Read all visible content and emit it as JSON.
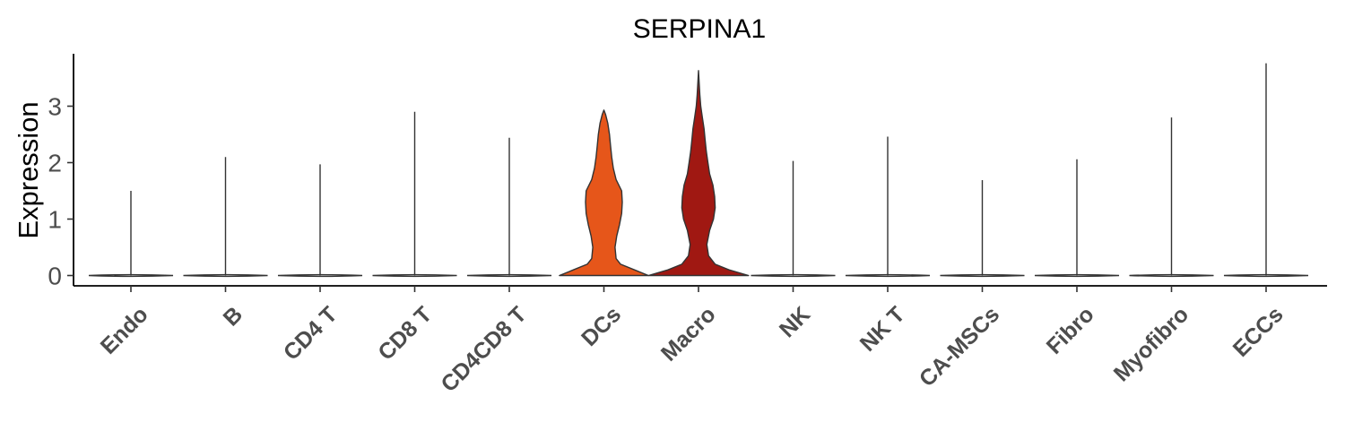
{
  "chart_data": {
    "type": "violin",
    "title": "SERPINA1",
    "ylabel": "Expression",
    "xlabel": "",
    "ylim": [
      -0.2,
      3.9
    ],
    "yticks": [
      0,
      1,
      2,
      3
    ],
    "grid": false,
    "legend": "none",
    "categories": [
      "Endo",
      "B",
      "CD4 T",
      "CD8 T",
      "CD4CD8 T",
      "DCs",
      "Macro",
      "NK",
      "NK T",
      "CA-MSCs",
      "Fibro",
      "Myofibro",
      "ECCs"
    ],
    "max_values": [
      1.5,
      2.1,
      1.97,
      2.9,
      2.44,
      2.93,
      3.63,
      2.03,
      2.46,
      1.69,
      2.06,
      2.8,
      3.76
    ],
    "colors": {
      "DCs": "#e6561a",
      "Macro": "#a01812",
      "default": "#ffffff",
      "outline": "#333333"
    },
    "density_profiles": {
      "DCs": [
        [
          0,
          0.8
        ],
        [
          0.1,
          0.55
        ],
        [
          0.2,
          0.3
        ],
        [
          0.3,
          0.22
        ],
        [
          0.5,
          0.2
        ],
        [
          0.7,
          0.23
        ],
        [
          0.9,
          0.28
        ],
        [
          1.1,
          0.32
        ],
        [
          1.3,
          0.33
        ],
        [
          1.5,
          0.32
        ],
        [
          1.7,
          0.22
        ],
        [
          1.9,
          0.17
        ],
        [
          2.1,
          0.14
        ],
        [
          2.3,
          0.12
        ],
        [
          2.5,
          0.1
        ],
        [
          2.7,
          0.07
        ],
        [
          2.85,
          0.03
        ],
        [
          2.93,
          0
        ]
      ],
      "Macro": [
        [
          0,
          0.9
        ],
        [
          0.1,
          0.55
        ],
        [
          0.2,
          0.3
        ],
        [
          0.35,
          0.18
        ],
        [
          0.55,
          0.15
        ],
        [
          0.8,
          0.2
        ],
        [
          1.0,
          0.27
        ],
        [
          1.2,
          0.3
        ],
        [
          1.4,
          0.29
        ],
        [
          1.6,
          0.26
        ],
        [
          1.8,
          0.2
        ],
        [
          2.0,
          0.17
        ],
        [
          2.2,
          0.14
        ],
        [
          2.4,
          0.12
        ],
        [
          2.6,
          0.1
        ],
        [
          2.8,
          0.07
        ],
        [
          3.0,
          0.04
        ],
        [
          3.2,
          0.025
        ],
        [
          3.45,
          0.01
        ],
        [
          3.63,
          0
        ]
      ]
    }
  }
}
